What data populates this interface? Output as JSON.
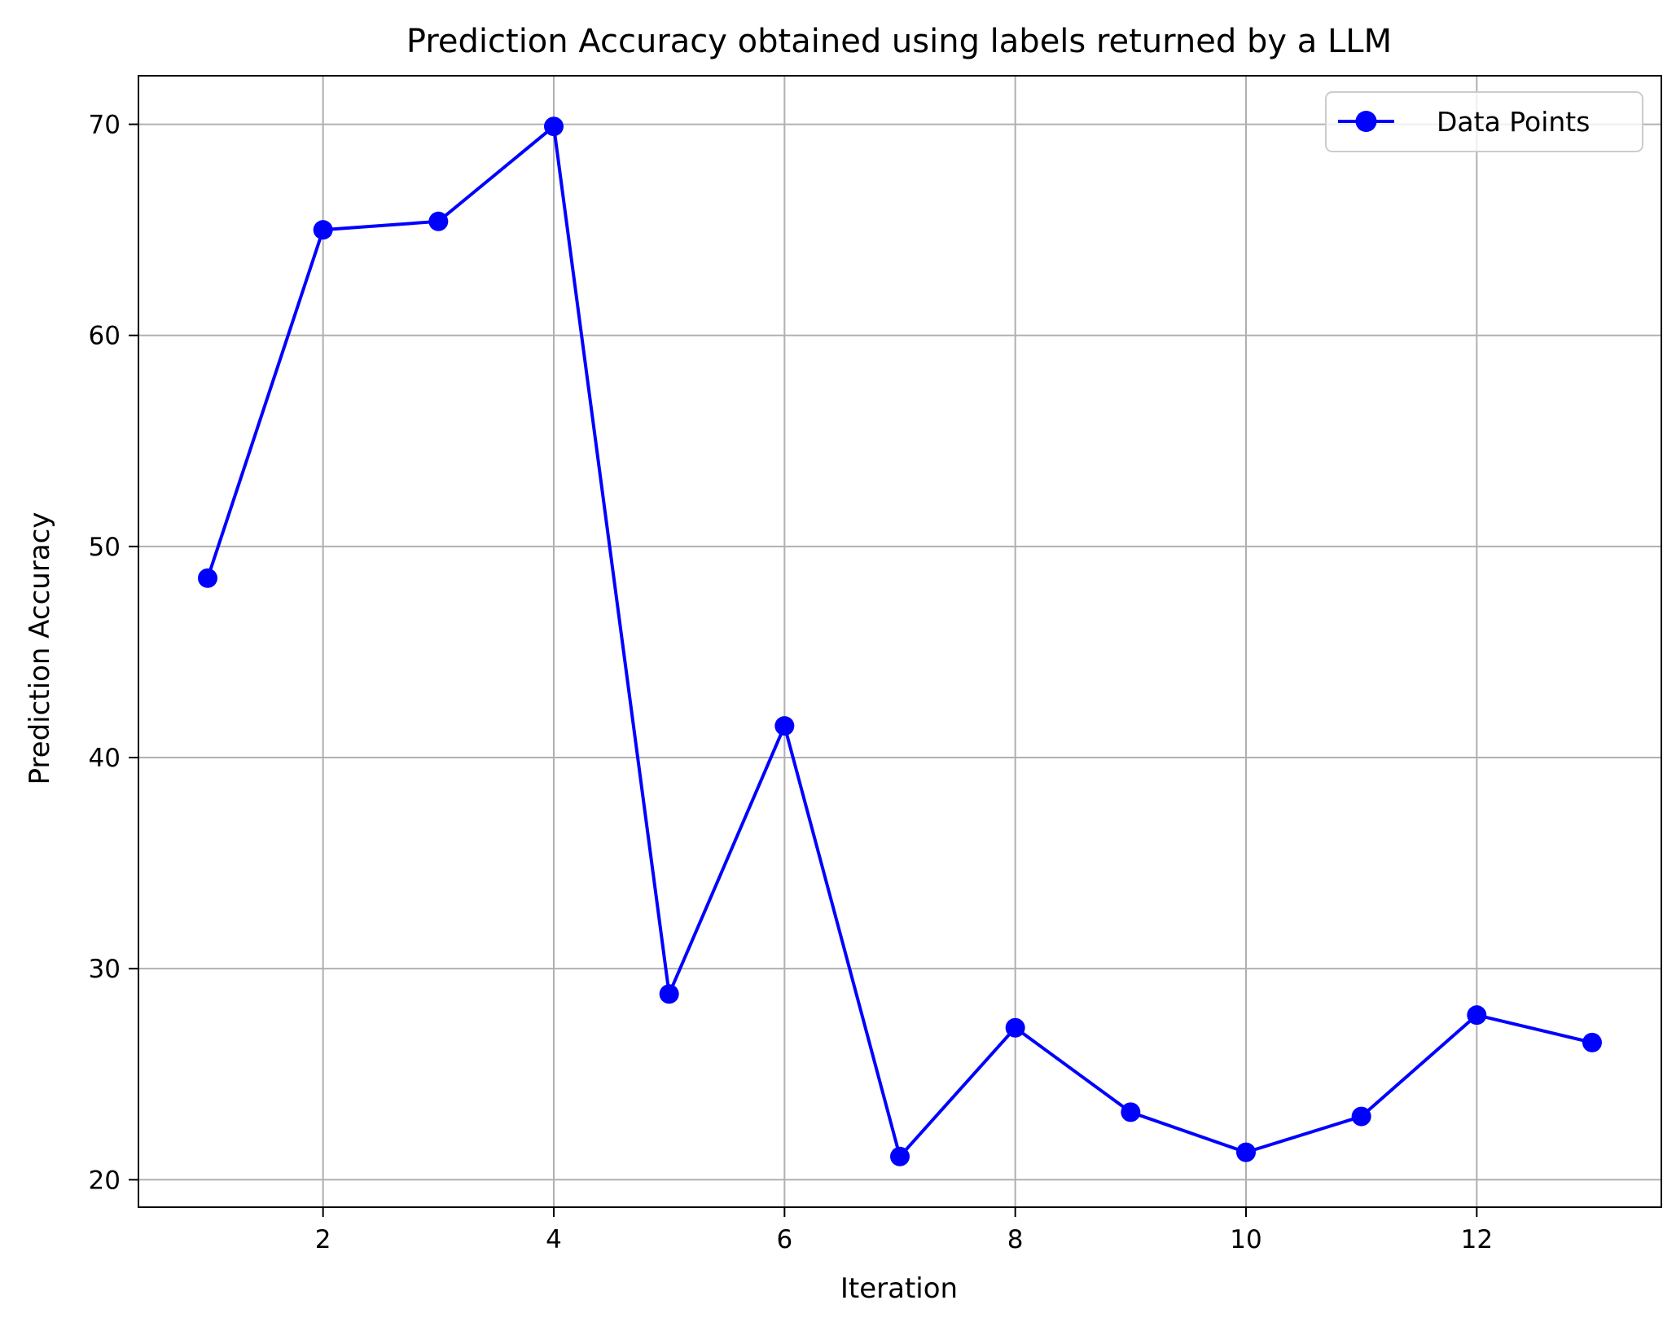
{
  "chart_data": {
    "type": "line",
    "title": "Prediction Accuracy obtained using labels returned by a LLM",
    "xlabel": "Iteration",
    "ylabel": "Prediction Accuracy",
    "xlim": [
      0.4,
      13.6
    ],
    "ylim": [
      18.7,
      72.3
    ],
    "x_ticks": [
      2,
      4,
      6,
      8,
      10,
      12
    ],
    "y_ticks": [
      20,
      30,
      40,
      50,
      60,
      70
    ],
    "grid": true,
    "legend_position": "top-right",
    "series": [
      {
        "name": "Data Points",
        "color": "#0000ff",
        "marker": "circle",
        "x": [
          1,
          2,
          3,
          4,
          5,
          6,
          7,
          8,
          9,
          10,
          11,
          12,
          13
        ],
        "y": [
          48.5,
          65.0,
          65.4,
          69.9,
          28.8,
          41.5,
          21.1,
          27.2,
          23.2,
          21.3,
          23.0,
          27.8,
          26.5
        ]
      }
    ]
  }
}
